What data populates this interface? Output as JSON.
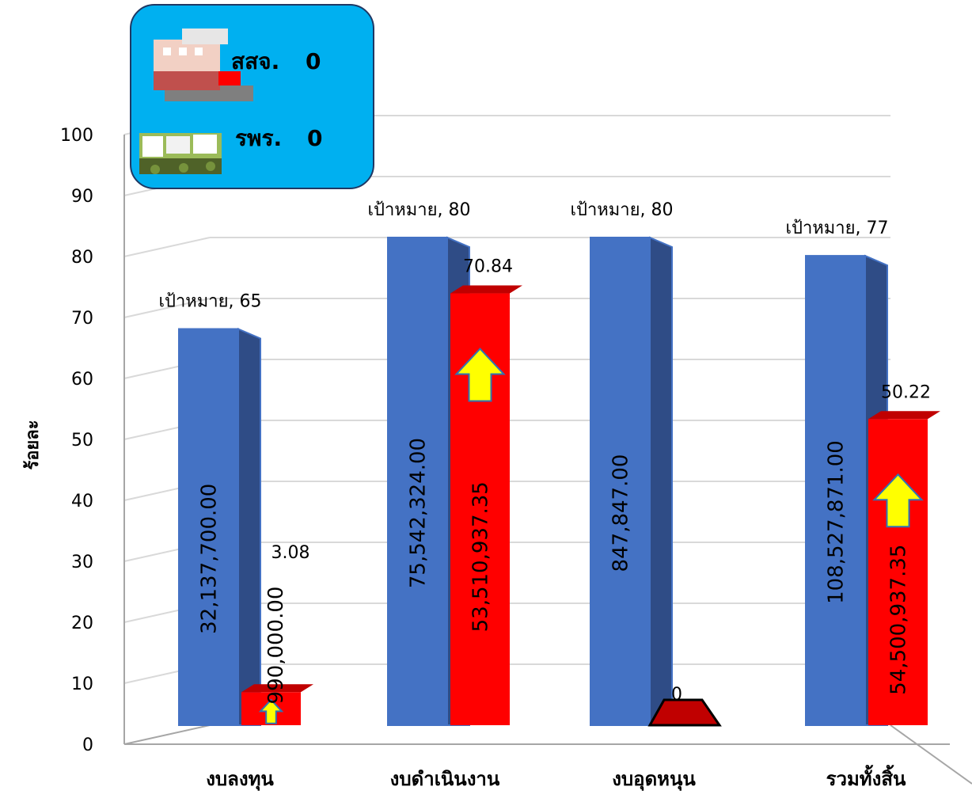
{
  "colors": {
    "target": "#4472C4",
    "actual": "#FF0000",
    "arrow": "#FFFF00",
    "panel": "#00B0F0"
  },
  "info_box": {
    "line1_label": "สสจ.",
    "line1_value": "0",
    "line2_label": "รพร.",
    "line2_value": "0",
    "icons": [
      "office-building-icon",
      "hospital-campus-icon"
    ]
  },
  "chart_data": {
    "type": "bar",
    "ylabel": "ร้อยละ",
    "xlabel": "",
    "ylim": [
      0,
      100
    ],
    "yticks": [
      "0",
      "10",
      "20",
      "30",
      "40",
      "50",
      "60",
      "70",
      "80",
      "90",
      "100"
    ],
    "categories": [
      "งบลงทุน",
      "งบดำเนินงาน",
      "งบอุดหนุน",
      "รวมทั้งสิ้น"
    ],
    "series": [
      {
        "values": [
          65,
          80,
          80,
          77
        ],
        "labels": [
          "เป้าหมาย, 65",
          "เป้าหมาย, 80",
          "เป้าหมาย, 80",
          "เป้าหมาย, 77"
        ],
        "amounts": [
          "32,137,700.00",
          "75,542,324.00",
          "847,847.00",
          "108,527,871.00"
        ]
      },
      {
        "values": [
          3.08,
          70.84,
          0,
          50.22
        ],
        "labels": [
          "3.08",
          "70.84",
          "0",
          "50.22"
        ],
        "amounts": [
          "990,000.00",
          "53,510,937.35",
          "",
          "54,500,937.35"
        ]
      }
    ],
    "up_arrows": [
      true,
      true,
      false,
      true
    ]
  }
}
